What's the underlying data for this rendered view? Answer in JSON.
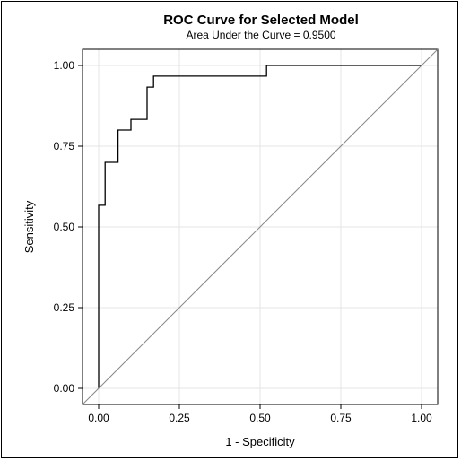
{
  "chart_data": {
    "type": "line",
    "title": "ROC Curve for Selected Model",
    "subtitle": "Area Under the Curve = 0.9500",
    "xlabel": "1 - Specificity",
    "ylabel": "Sensitivity",
    "xlim": [
      -0.05,
      1.05
    ],
    "ylim": [
      -0.05,
      1.05
    ],
    "xticks": [
      "0.00",
      "0.25",
      "0.50",
      "0.75",
      "1.00"
    ],
    "yticks": [
      "0.00",
      "0.25",
      "0.50",
      "0.75",
      "1.00"
    ],
    "grid": true,
    "series": [
      {
        "style": "step",
        "color": "#000000",
        "x": [
          0.0,
          0.0,
          0.02,
          0.02,
          0.06,
          0.06,
          0.1,
          0.1,
          0.15,
          0.15,
          0.17,
          0.17,
          0.52,
          0.52,
          1.0
        ],
        "y": [
          0.0,
          0.567,
          0.567,
          0.7,
          0.7,
          0.8,
          0.8,
          0.833,
          0.833,
          0.933,
          0.933,
          0.967,
          0.967,
          1.0,
          1.0
        ]
      },
      {
        "style": "reference",
        "color": "#888888",
        "x": [
          -0.05,
          1.05
        ],
        "y": [
          -0.05,
          1.05
        ]
      }
    ]
  }
}
